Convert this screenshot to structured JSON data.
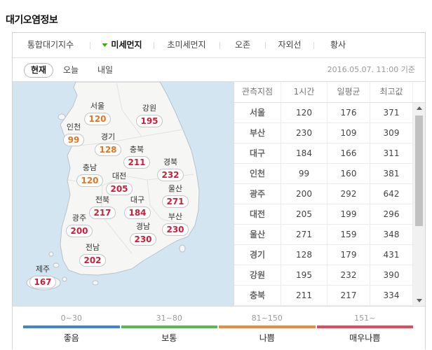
{
  "title": "대기오염정보",
  "tabs": [
    {
      "label": "통합대기지수",
      "selected": false
    },
    {
      "label": "미세먼지",
      "selected": true,
      "icon": "caret-down-icon"
    },
    {
      "label": "초미세먼지",
      "selected": false
    },
    {
      "label": "오존",
      "selected": false
    },
    {
      "label": "자외선",
      "selected": false
    },
    {
      "label": "황사",
      "selected": false
    }
  ],
  "time_tabs": [
    {
      "label": "현재",
      "selected": true
    },
    {
      "label": "오늘",
      "selected": false
    },
    {
      "label": "내일",
      "selected": false
    }
  ],
  "timestamp": "2016.05.07. 11:00 기준",
  "map": {
    "regions": [
      {
        "name": "서울",
        "value": 120,
        "color": "#e4761f"
      },
      {
        "name": "강원",
        "value": 195,
        "color": "#cc1f3a"
      },
      {
        "name": "인천",
        "value": 99,
        "color": "#e4761f"
      },
      {
        "name": "경기",
        "value": 128,
        "color": "#e4761f"
      },
      {
        "name": "충북",
        "value": 211,
        "color": "#cc1f3a"
      },
      {
        "name": "충남",
        "value": 120,
        "color": "#e4761f"
      },
      {
        "name": "대전",
        "value": 205,
        "color": "#cc1f3a"
      },
      {
        "name": "경북",
        "value": 232,
        "color": "#cc1f3a"
      },
      {
        "name": "울산",
        "value": 271,
        "color": "#cc1f3a"
      },
      {
        "name": "전북",
        "value": 217,
        "color": "#cc1f3a"
      },
      {
        "name": "대구",
        "value": 184,
        "color": "#cc1f3a"
      },
      {
        "name": "광주",
        "value": 200,
        "color": "#cc1f3a"
      },
      {
        "name": "경남",
        "value": 230,
        "color": "#cc1f3a"
      },
      {
        "name": "부산",
        "value": 230,
        "color": "#cc1f3a"
      },
      {
        "name": "전남",
        "value": 202,
        "color": "#cc1f3a"
      },
      {
        "name": "제주",
        "value": 167,
        "color": "#cc1f3a"
      }
    ]
  },
  "table": {
    "headers": [
      "관측지점",
      "1시간",
      "일평균",
      "최고값"
    ],
    "rows": [
      {
        "station": "서울",
        "hour": 120,
        "day_avg": 176,
        "max": 371
      },
      {
        "station": "부산",
        "hour": 230,
        "day_avg": 109,
        "max": 309
      },
      {
        "station": "대구",
        "hour": 184,
        "day_avg": 166,
        "max": 311
      },
      {
        "station": "인천",
        "hour": 99,
        "day_avg": 160,
        "max": 381
      },
      {
        "station": "광주",
        "hour": 200,
        "day_avg": 292,
        "max": 642
      },
      {
        "station": "대전",
        "hour": 205,
        "day_avg": 199,
        "max": 296
      },
      {
        "station": "울산",
        "hour": 271,
        "day_avg": 159,
        "max": 348
      },
      {
        "station": "경기",
        "hour": 128,
        "day_avg": 179,
        "max": 431
      },
      {
        "station": "강원",
        "hour": 195,
        "day_avg": 232,
        "max": 390
      },
      {
        "station": "충북",
        "hour": 211,
        "day_avg": 217,
        "max": 334
      }
    ]
  },
  "legend": [
    {
      "range": "0~30",
      "label": "좋음",
      "color": "#3f84d9"
    },
    {
      "range": "31~80",
      "label": "보통",
      "color": "#58bb4e"
    },
    {
      "range": "81~150",
      "label": "나쁨",
      "color": "#ef8a3d"
    },
    {
      "range": "151~",
      "label": "매우나쁨",
      "color": "#e44a5c"
    }
  ]
}
